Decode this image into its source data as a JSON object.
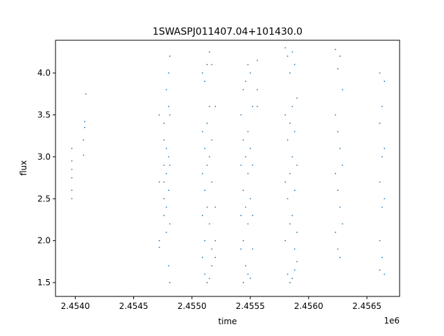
{
  "chart_data": {
    "type": "scatter",
    "title": "1SWASPJ011407.04+101430.0",
    "xlabel": "time",
    "ylabel": "flux",
    "x_offset_label": "1e6",
    "xlim": [
      2453830,
      2456780
    ],
    "ylim": [
      1.335,
      4.39
    ],
    "x_ticks": [
      {
        "value": 2454000,
        "label": "2.4540"
      },
      {
        "value": 2454500,
        "label": "2.4545"
      },
      {
        "value": 2455000,
        "label": "2.4550"
      },
      {
        "value": 2455500,
        "label": "2.4555"
      },
      {
        "value": 2456000,
        "label": "2.4560"
      },
      {
        "value": 2456500,
        "label": "2.4565"
      }
    ],
    "y_ticks": [
      {
        "value": 1.5,
        "label": "1.5"
      },
      {
        "value": 2.0,
        "label": "2.0"
      },
      {
        "value": 2.5,
        "label": "2.5"
      },
      {
        "value": 3.0,
        "label": "3.0"
      },
      {
        "value": 3.5,
        "label": "3.5"
      },
      {
        "value": 4.0,
        "label": "4.0"
      }
    ],
    "grid": false,
    "legend": "none",
    "series": [
      {
        "color": "#1f77b4",
        "points": [
          [
            2453970,
            3.1
          ],
          [
            2453970,
            2.95
          ],
          [
            2453970,
            2.85
          ],
          [
            2453970,
            2.75
          ],
          [
            2453970,
            2.6
          ],
          [
            2453970,
            2.5
          ],
          [
            2454090,
            3.75
          ],
          [
            2454080,
            3.42
          ],
          [
            2454080,
            3.35
          ],
          [
            2454070,
            3.2
          ],
          [
            2454070,
            3.02
          ],
          [
            2454720,
            3.5
          ],
          [
            2454720,
            2.7
          ],
          [
            2454720,
            2.0
          ],
          [
            2454720,
            1.92
          ],
          [
            2454760,
            3.4
          ],
          [
            2454760,
            3.2
          ],
          [
            2454760,
            2.9
          ],
          [
            2454760,
            2.7
          ],
          [
            2454760,
            2.5
          ],
          [
            2454760,
            2.3
          ],
          [
            2454780,
            3.8
          ],
          [
            2454780,
            3.1
          ],
          [
            2454780,
            2.8
          ],
          [
            2454780,
            2.4
          ],
          [
            2454780,
            2.1
          ],
          [
            2454800,
            4.0
          ],
          [
            2454800,
            3.6
          ],
          [
            2454800,
            3.0
          ],
          [
            2454800,
            2.6
          ],
          [
            2454800,
            1.7
          ],
          [
            2454810,
            4.2
          ],
          [
            2454810,
            3.5
          ],
          [
            2454810,
            2.9
          ],
          [
            2454810,
            2.2
          ],
          [
            2454810,
            1.5
          ],
          [
            2455090,
            4.0
          ],
          [
            2455090,
            3.3
          ],
          [
            2455090,
            2.8
          ],
          [
            2455090,
            2.3
          ],
          [
            2455090,
            1.8
          ],
          [
            2455110,
            3.9
          ],
          [
            2455110,
            3.1
          ],
          [
            2455110,
            2.6
          ],
          [
            2455110,
            2.0
          ],
          [
            2455110,
            1.6
          ],
          [
            2455130,
            4.1
          ],
          [
            2455130,
            3.4
          ],
          [
            2455130,
            2.9
          ],
          [
            2455130,
            2.4
          ],
          [
            2455130,
            1.5
          ],
          [
            2455150,
            4.25
          ],
          [
            2455150,
            3.6
          ],
          [
            2455150,
            3.0
          ],
          [
            2455150,
            2.2
          ],
          [
            2455150,
            1.55
          ],
          [
            2455170,
            4.1
          ],
          [
            2455170,
            3.2
          ],
          [
            2455170,
            2.7
          ],
          [
            2455170,
            1.9
          ],
          [
            2455170,
            1.7
          ],
          [
            2455200,
            3.6
          ],
          [
            2455200,
            2.4
          ],
          [
            2455200,
            2.0
          ],
          [
            2455200,
            1.8
          ],
          [
            2455420,
            3.5
          ],
          [
            2455420,
            2.9
          ],
          [
            2455420,
            2.3
          ],
          [
            2455420,
            1.9
          ],
          [
            2455440,
            3.8
          ],
          [
            2455440,
            3.2
          ],
          [
            2455440,
            2.6
          ],
          [
            2455440,
            2.0
          ],
          [
            2455440,
            1.5
          ],
          [
            2455460,
            3.9
          ],
          [
            2455460,
            3.0
          ],
          [
            2455460,
            2.4
          ],
          [
            2455460,
            1.7
          ],
          [
            2455480,
            4.1
          ],
          [
            2455480,
            3.3
          ],
          [
            2455480,
            2.8
          ],
          [
            2455480,
            2.2
          ],
          [
            2455480,
            1.6
          ],
          [
            2455500,
            4.0
          ],
          [
            2455500,
            3.1
          ],
          [
            2455500,
            2.5
          ],
          [
            2455500,
            1.55
          ],
          [
            2455520,
            3.6
          ],
          [
            2455520,
            2.9
          ],
          [
            2455520,
            2.3
          ],
          [
            2455520,
            1.9
          ],
          [
            2455560,
            4.15
          ],
          [
            2455560,
            3.8
          ],
          [
            2455560,
            3.6
          ],
          [
            2455800,
            4.3
          ],
          [
            2455800,
            3.5
          ],
          [
            2455800,
            2.7
          ],
          [
            2455800,
            2.0
          ],
          [
            2455820,
            4.2
          ],
          [
            2455820,
            3.2
          ],
          [
            2455820,
            2.5
          ],
          [
            2455820,
            1.6
          ],
          [
            2455840,
            4.0
          ],
          [
            2455840,
            3.4
          ],
          [
            2455840,
            2.8
          ],
          [
            2455840,
            2.2
          ],
          [
            2455840,
            1.5
          ],
          [
            2455860,
            4.25
          ],
          [
            2455860,
            3.6
          ],
          [
            2455860,
            3.0
          ],
          [
            2455860,
            2.3
          ],
          [
            2455860,
            1.55
          ],
          [
            2455880,
            4.1
          ],
          [
            2455880,
            3.3
          ],
          [
            2455880,
            2.6
          ],
          [
            2455880,
            1.9
          ],
          [
            2455880,
            1.65
          ],
          [
            2455900,
            3.7
          ],
          [
            2455900,
            2.9
          ],
          [
            2455900,
            2.1
          ],
          [
            2455900,
            1.75
          ],
          [
            2456230,
            4.28
          ],
          [
            2456230,
            3.5
          ],
          [
            2456230,
            2.8
          ],
          [
            2456230,
            2.1
          ],
          [
            2456250,
            4.05
          ],
          [
            2456250,
            3.3
          ],
          [
            2456250,
            2.6
          ],
          [
            2456250,
            1.9
          ],
          [
            2456270,
            4.2
          ],
          [
            2456270,
            3.1
          ],
          [
            2456270,
            2.4
          ],
          [
            2456270,
            1.8
          ],
          [
            2456290,
            3.8
          ],
          [
            2456290,
            2.9
          ],
          [
            2456290,
            2.2
          ],
          [
            2456610,
            4.0
          ],
          [
            2456610,
            3.4
          ],
          [
            2456610,
            2.7
          ],
          [
            2456610,
            2.0
          ],
          [
            2456610,
            1.65
          ],
          [
            2456630,
            3.6
          ],
          [
            2456630,
            3.0
          ],
          [
            2456630,
            2.4
          ],
          [
            2456630,
            1.8
          ],
          [
            2456650,
            3.9
          ],
          [
            2456650,
            3.1
          ],
          [
            2456650,
            2.5
          ],
          [
            2456650,
            1.6
          ]
        ]
      }
    ]
  }
}
